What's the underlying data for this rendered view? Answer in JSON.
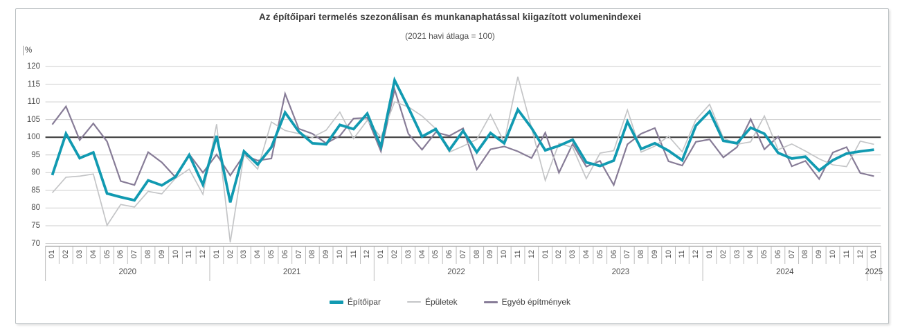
{
  "title": "Az építőipari termelés szezonálisan és munkanaphatással kiigazított volumenindexei",
  "subtitle": "(2021 havi átlaga = 100)",
  "y_axis_unit": "%",
  "chart_data": {
    "type": "line",
    "title": "Az építőipari termelés szezonálisan és munkanaphatással kiigazított volumenindexei",
    "subtitle": "(2021 havi átlaga = 100)",
    "ylabel": "%",
    "ylim": [
      70,
      120
    ],
    "ytick_step": 5,
    "yticks": [
      70,
      75,
      80,
      85,
      90,
      95,
      100,
      105,
      110,
      115,
      120
    ],
    "baseline": 100,
    "grid": "horizontal",
    "legend_position": "bottom",
    "x_month_labels": [
      "01",
      "02",
      "03",
      "04",
      "05",
      "06",
      "07",
      "08",
      "09",
      "10",
      "11",
      "12",
      "01",
      "02",
      "03",
      "04",
      "05",
      "06",
      "07",
      "08",
      "09",
      "10",
      "11",
      "12",
      "01",
      "02",
      "03",
      "04",
      "05",
      "06",
      "07",
      "08",
      "09",
      "10",
      "11",
      "12",
      "01",
      "02",
      "03",
      "04",
      "05",
      "06",
      "07",
      "08",
      "09",
      "10",
      "11",
      "12",
      "01",
      "02",
      "03",
      "04",
      "05",
      "06",
      "07",
      "08",
      "09",
      "10",
      "11",
      "12",
      "01"
    ],
    "year_groups": [
      {
        "label": "2020",
        "months": 12
      },
      {
        "label": "2021",
        "months": 12
      },
      {
        "label": "2022",
        "months": 12
      },
      {
        "label": "2023",
        "months": 12
      },
      {
        "label": "2024",
        "months": 12
      },
      {
        "label": "2025",
        "months": 1
      }
    ],
    "series": [
      {
        "name": "Építőipar",
        "color": "#119ab1",
        "stroke_width": 3.8,
        "values": [
          89.3,
          101.0,
          94.1,
          95.7,
          84.1,
          83.1,
          82.2,
          87.8,
          86.4,
          88.8,
          95.0,
          86.6,
          100.4,
          81.6,
          96.0,
          92.3,
          97.2,
          107.0,
          101.6,
          98.3,
          98.0,
          103.5,
          102.3,
          106.7,
          97.3,
          116.1,
          108.4,
          100.2,
          102.3,
          96.4,
          101.8,
          95.8,
          101.2,
          98.3,
          107.8,
          102.6,
          96.3,
          97.6,
          99.3,
          92.9,
          91.9,
          93.4,
          104.4,
          96.7,
          98.3,
          96.2,
          93.5,
          103.3,
          107.3,
          99.0,
          98.3,
          102.7,
          101.0,
          95.6,
          94.0,
          94.5,
          90.6,
          93.5,
          95.4,
          96.0,
          96.5
        ]
      },
      {
        "name": "Épületek",
        "color": "#c4c5c7",
        "stroke_width": 1.7,
        "values": [
          84.3,
          88.7,
          89.0,
          89.6,
          75.1,
          81.0,
          80.3,
          84.7,
          84.0,
          88.4,
          91.0,
          83.9,
          103.7,
          70.3,
          95.1,
          91.0,
          104.3,
          101.9,
          101.0,
          100.0,
          102.0,
          107.1,
          99.6,
          104.8,
          100.0,
          110.0,
          108.6,
          106.0,
          102.4,
          95.8,
          97.5,
          99.4,
          106.4,
          98.6,
          117.1,
          102.6,
          87.8,
          98.3,
          97.1,
          88.3,
          95.5,
          96.2,
          107.7,
          95.8,
          97.5,
          100.3,
          95.9,
          105.0,
          109.3,
          99.8,
          98.0,
          98.7,
          106.0,
          96.5,
          98.1,
          96.1,
          93.9,
          92.2,
          91.7,
          98.9,
          98.0
        ]
      },
      {
        "name": "Egyéb építmények",
        "color": "#877c97",
        "stroke_width": 2.2,
        "values": [
          103.6,
          108.7,
          99.2,
          103.9,
          98.8,
          87.6,
          86.5,
          95.8,
          92.9,
          88.7,
          95.2,
          90.0,
          95.1,
          89.2,
          95.0,
          93.4,
          94.0,
          112.3,
          102.4,
          101.0,
          98.3,
          100.4,
          105.3,
          105.5,
          96.0,
          113.5,
          101.0,
          96.5,
          101.4,
          100.4,
          102.5,
          90.9,
          96.6,
          97.4,
          96.0,
          94.1,
          101.3,
          90.0,
          98.1,
          91.7,
          93.3,
          86.5,
          98.0,
          101.0,
          102.6,
          93.2,
          92.0,
          98.7,
          99.4,
          94.3,
          97.2,
          105.1,
          96.6,
          100.2,
          91.8,
          93.3,
          88.2,
          95.7,
          97.2,
          89.9,
          89.0
        ]
      }
    ]
  },
  "legend": {
    "items": [
      {
        "label": "Építőipar",
        "color": "#119ab1",
        "thickness": 5
      },
      {
        "label": "Épületek",
        "color": "#c4c5c7",
        "thickness": 2.5
      },
      {
        "label": "Egyéb építmények",
        "color": "#877c97",
        "thickness": 3
      }
    ]
  },
  "colors": {
    "grid_line": "#cccccc",
    "baseline_100": "#404040",
    "axis_line": "#9b9b9b",
    "tick_line": "#bdbdbd",
    "text": "#4d4d4d",
    "title_text": "#3b3b3b",
    "frame_border": "#b9bfc1",
    "background": "#ffffff"
  }
}
